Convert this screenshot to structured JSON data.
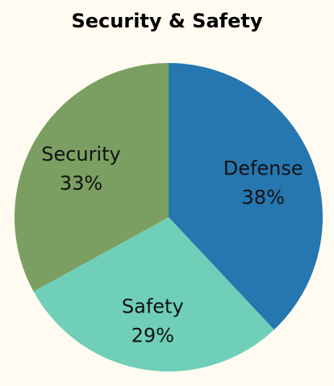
{
  "chart_data": {
    "type": "pie",
    "title": "Security & Safety",
    "slices": [
      {
        "label": "Defense",
        "value": 38,
        "value_label": "38%",
        "color": "#2677b0"
      },
      {
        "label": "Safety",
        "value": 29,
        "value_label": "29%",
        "color": "#6fcfb8"
      },
      {
        "label": "Security",
        "value": 33,
        "value_label": "33%",
        "color": "#7b9f62"
      }
    ],
    "start_angle": "12 o'clock",
    "direction": "clockwise",
    "legend": "none",
    "labels_inside": true
  },
  "background_color": "#fffbf0"
}
